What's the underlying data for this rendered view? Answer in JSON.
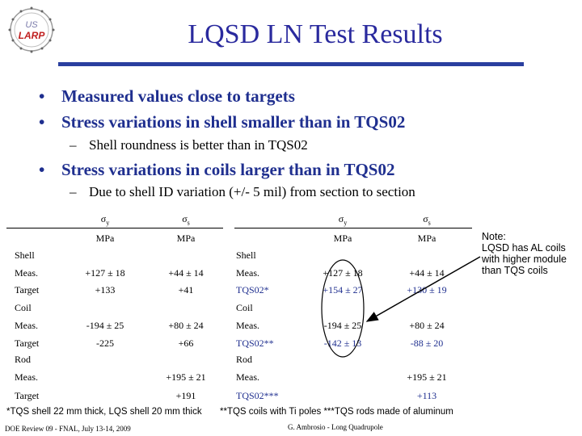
{
  "logo": {
    "line1": "US",
    "line2": "LARP"
  },
  "title": "LQSD LN Test Results",
  "bullets": [
    "Measured values close to targets",
    "Stress variations in shell smaller than in TQS02",
    "Stress variations in coils larger than in TQS02"
  ],
  "subbullets": [
    "Shell roundness is better than in TQS02",
    "Due to shell ID variation (+/- 5 mil) from section to section"
  ],
  "bullet_glyph": "•",
  "dash_glyph": "–",
  "left_table": {
    "header_y": "σ",
    "header_y_sub": "y",
    "header_s": "σ",
    "header_s_sub": "s",
    "unit_y": "MPa",
    "unit_s": "MPa",
    "sections": [
      {
        "label": "Shell",
        "rows": [
          {
            "name": "Meas.",
            "y": "+127 ± 18",
            "s": "+44 ± 14"
          },
          {
            "name": "Target",
            "y": "+133",
            "s": "+41"
          }
        ]
      },
      {
        "label": "Coil",
        "rows": [
          {
            "name": "Meas.",
            "y": "-194 ± 25",
            "s": "+80 ± 24"
          },
          {
            "name": "Target",
            "y": "-225",
            "s": "+66"
          }
        ]
      },
      {
        "label": "Rod",
        "rows": [
          {
            "name": "Meas.",
            "y": "",
            "s": "+195 ± 21"
          },
          {
            "name": "Target",
            "y": "",
            "s": "+191"
          }
        ]
      }
    ]
  },
  "right_table": {
    "header_y": "σ",
    "header_y_sub": "y",
    "header_s": "σ",
    "header_s_sub": "s",
    "unit_y": "MPa",
    "unit_s": "MPa",
    "sections": [
      {
        "label": "Shell",
        "rows": [
          {
            "name": "Meas.",
            "y": "+127 ± 18",
            "s": "+44 ± 14"
          },
          {
            "name": "TQS02*",
            "y": "+154 ± 27",
            "s": "+130 ± 19"
          }
        ]
      },
      {
        "label": "Coil",
        "rows": [
          {
            "name": "Meas.",
            "y": "-194 ± 25",
            "s": "+80 ± 24"
          },
          {
            "name": "TQS02**",
            "y": "-142 ± 13",
            "s": "-88 ± 20"
          }
        ]
      },
      {
        "label": "Rod",
        "rows": [
          {
            "name": "Meas.",
            "y": "",
            "s": "+195 ± 21"
          },
          {
            "name": "TQS02***",
            "y": "",
            "s": "+113"
          }
        ]
      }
    ]
  },
  "note": {
    "line1": "Note:",
    "line2": "LQSD has AL coils",
    "line3": "with higher module",
    "line4": "than TQS coils"
  },
  "footnote_left": "*TQS shell 22 mm thick, LQS shell 20 mm thick",
  "footnote_right": "**TQS coils with Ti poles   ***TQS rods made of aluminum",
  "footer_left": "DOE Review 09 - FNAL, July 13-14, 2009",
  "footer_center": "G. Ambrosio - Long Quadrupole",
  "colors": {
    "title": "#2a2a9e",
    "bullet": "#1f2f8f",
    "bar": "#2a3f9f"
  }
}
